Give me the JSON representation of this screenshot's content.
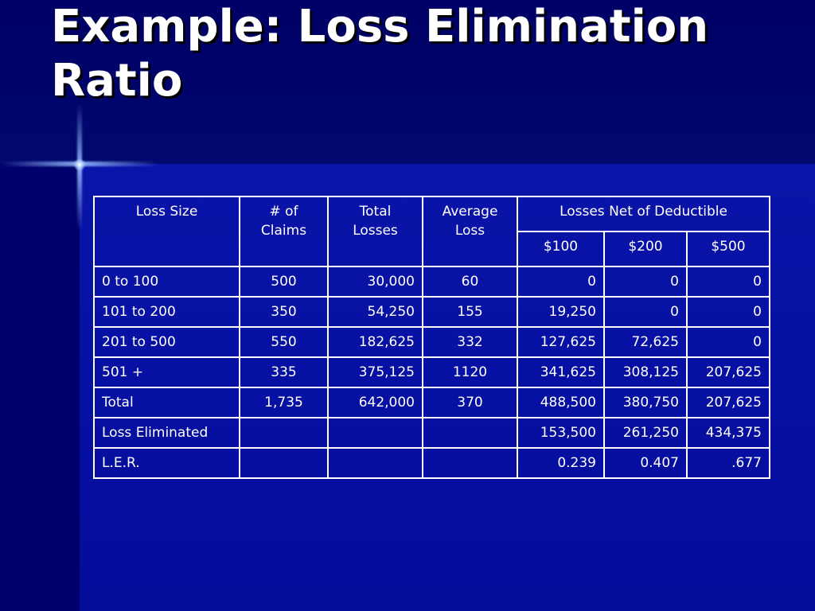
{
  "slide": {
    "title": "Example: Loss Elimination Ratio"
  },
  "table": {
    "headers": {
      "loss_size": "Loss Size",
      "num_claims": "# of Claims",
      "total_losses": "Total Losses",
      "average_loss": "Average Loss",
      "losses_net": "Losses Net of Deductible",
      "ded_100": "$100",
      "ded_200": "$200",
      "ded_500": "$500"
    },
    "rows": [
      [
        "0 to 100",
        "500",
        "30,000",
        "60",
        "0",
        "0",
        "0"
      ],
      [
        "101 to 200",
        "350",
        "54,250",
        "155",
        "19,250",
        "0",
        "0"
      ],
      [
        "201 to 500",
        "550",
        "182,625",
        "332",
        "127,625",
        "72,625",
        "0"
      ],
      [
        "501 +",
        "335",
        "375,125",
        "1120",
        "341,625",
        "308,125",
        "207,625"
      ],
      [
        "Total",
        "1,735",
        "642,000",
        "370",
        "488,500",
        "380,750",
        "207,625"
      ],
      [
        "Loss Eliminated",
        "",
        "",
        "",
        "153,500",
        "261,250",
        "434,375"
      ],
      [
        "L.E.R.",
        "",
        "",
        "",
        "0.239",
        "0.407",
        ".677"
      ]
    ]
  }
}
